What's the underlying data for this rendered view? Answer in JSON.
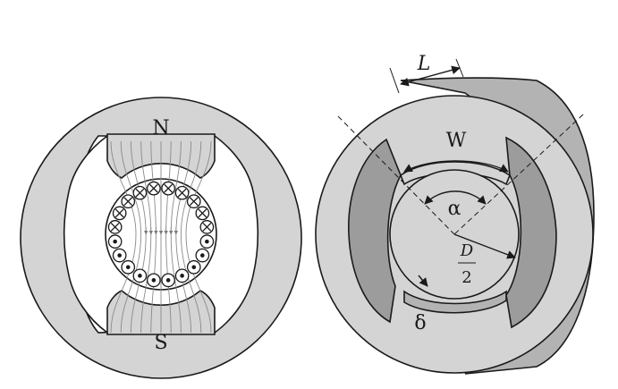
{
  "figure": {
    "left_panel": {
      "labels": {
        "north": "N",
        "south": "S"
      },
      "conductors": {
        "count": 20,
        "into_page": 10,
        "out_of_page": 10,
        "into_symbol": "⊗",
        "out_symbol": "⊙"
      },
      "field_lines": {
        "count": 11,
        "direction": "downward"
      }
    },
    "right_panel": {
      "labels": {
        "length": "L",
        "width": "W",
        "angle": "α",
        "radius_numerator": "D",
        "radius_denominator": "2",
        "gap": "δ"
      }
    },
    "colors": {
      "body_fill": "#d4d4d4",
      "side_fill": "#b3b3b3",
      "dark_fill": "#9c9c9c",
      "stroke": "#1a1a1a",
      "field_line": "#8a8a8a"
    }
  }
}
